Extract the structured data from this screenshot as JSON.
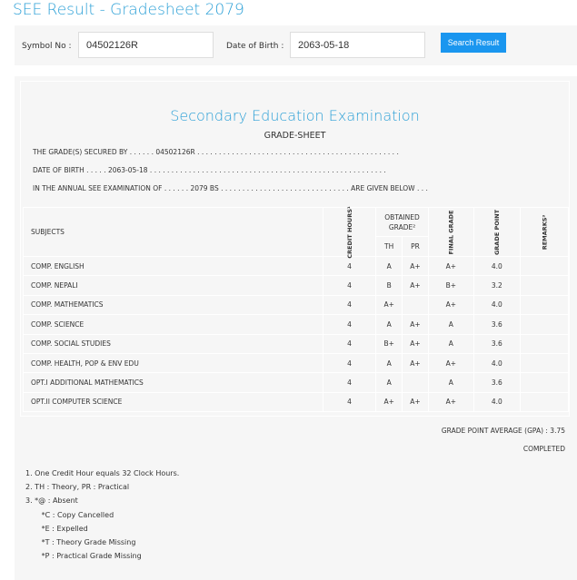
{
  "page_title": "SEE Result - Gradesheet 2079",
  "search": {
    "symbol_label": "Symbol No :",
    "symbol_value": "04502126R",
    "dob_label": "Date of Birth :",
    "dob_value": "2063-05-18",
    "button": "Search Result"
  },
  "sheet": {
    "heading": "Secondary Education Examination",
    "subheading": "GRADE-SHEET",
    "line1": "THE GRADE(S) SECURED BY . . . . . . 04502126R . . . . . . . . . . . . . . . . . . . . . . . . . . . . . . . . . . . . . . . . . . . . . . .",
    "line2": "DATE OF BIRTH . . . . . 2063-05-18 . . . . . . . . . . . . . . . . . . . . . . . . . . . . . . . . . . . . . . . . . . . . . . . . . . . . . . .",
    "line3": "IN THE ANNUAL SEE EXAMINATION OF . . . . . . 2079 BS . . . . . . . . . . . . . . . . . . . . . . . . . . . . . . ARE GIVEN BELOW . . .",
    "headers": {
      "subjects": "SUBJECTS",
      "credit": "CREDIT HOURS¹",
      "obtained": "OBTAINED GRADE²",
      "th": "TH",
      "pr": "PR",
      "final": "FINAL GRADE",
      "gp": "GRADE POINT",
      "remarks": "REMARKS³"
    },
    "rows": [
      {
        "subject": "COMP. ENGLISH",
        "credit": "4",
        "th": "A",
        "pr": "A+",
        "final": "A+",
        "gp": "4.0"
      },
      {
        "subject": "COMP. NEPALI",
        "credit": "4",
        "th": "B",
        "pr": "A+",
        "final": "B+",
        "gp": "3.2"
      },
      {
        "subject": "COMP. MATHEMATICS",
        "credit": "4",
        "th": "A+",
        "pr": "",
        "final": "A+",
        "gp": "4.0"
      },
      {
        "subject": "COMP. SCIENCE",
        "credit": "4",
        "th": "A",
        "pr": "A+",
        "final": "A",
        "gp": "3.6"
      },
      {
        "subject": "COMP. SOCIAL STUDIES",
        "credit": "4",
        "th": "B+",
        "pr": "A+",
        "final": "A",
        "gp": "3.6"
      },
      {
        "subject": "COMP. HEALTH, POP & ENV EDU",
        "credit": "4",
        "th": "A",
        "pr": "A+",
        "final": "A+",
        "gp": "4.0"
      },
      {
        "subject": "OPT.I ADDITIONAL MATHEMATICS",
        "credit": "4",
        "th": "A",
        "pr": "",
        "final": "A",
        "gp": "3.6"
      },
      {
        "subject": "OPT.II COMPUTER SCIENCE",
        "credit": "4",
        "th": "A+",
        "pr": "A+",
        "final": "A+",
        "gp": "4.0"
      }
    ],
    "gpa": "GRADE POINT AVERAGE (GPA) : 3.75",
    "status": "COMPLETED"
  },
  "notes": [
    "1. One Credit Hour equals 32 Clock Hours.",
    "2. TH : Theory, PR : Practical",
    "3. *@ : Absent",
    "   *C : Copy Cancelled",
    "   *E : Expelled",
    "   *T : Theory Grade Missing",
    "   *P : Practical Grade Missing"
  ]
}
